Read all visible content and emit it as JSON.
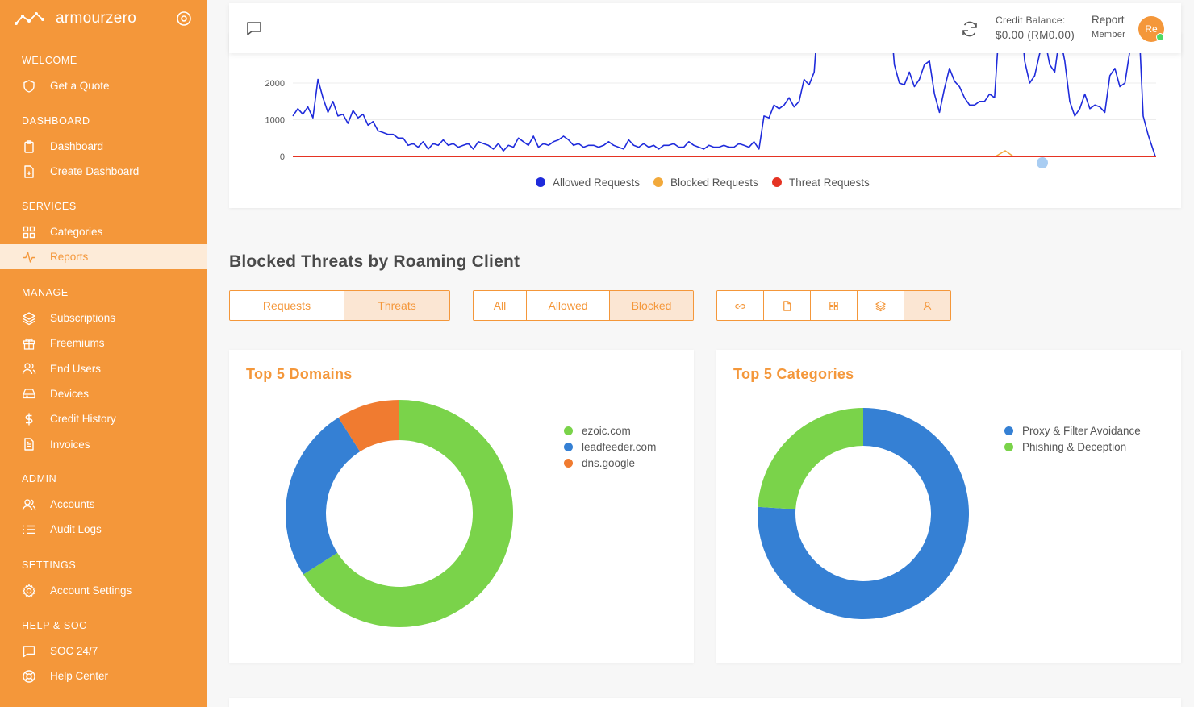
{
  "brand": {
    "name": "armourzero"
  },
  "sidebar": {
    "sections": [
      {
        "title": "WELCOME",
        "items": [
          {
            "label": "Get a Quote",
            "icon": "shield-icon"
          }
        ]
      },
      {
        "title": "DASHBOARD",
        "items": [
          {
            "label": "Dashboard",
            "icon": "clipboard-icon"
          },
          {
            "label": "Create Dashboard",
            "icon": "file-plus-icon"
          }
        ]
      },
      {
        "title": "SERVICES",
        "items": [
          {
            "label": "Categories",
            "icon": "grid-icon"
          },
          {
            "label": "Reports",
            "icon": "activity-icon"
          }
        ]
      },
      {
        "title": "MANAGE",
        "items": [
          {
            "label": "Subscriptions",
            "icon": "layers-icon"
          },
          {
            "label": "Freemiums",
            "icon": "gift-icon"
          },
          {
            "label": "End Users",
            "icon": "users-icon"
          },
          {
            "label": "Devices",
            "icon": "hard-drive-icon"
          },
          {
            "label": "Credit History",
            "icon": "dollar-icon"
          },
          {
            "label": "Invoices",
            "icon": "file-text-icon"
          }
        ]
      },
      {
        "title": "ADMIN",
        "items": [
          {
            "label": "Accounts",
            "icon": "users-icon"
          },
          {
            "label": "Audit Logs",
            "icon": "list-icon"
          }
        ]
      },
      {
        "title": "SETTINGS",
        "items": [
          {
            "label": "Account Settings",
            "icon": "settings-icon"
          }
        ]
      },
      {
        "title": "HELP & SOC",
        "items": [
          {
            "label": "SOC 24/7",
            "icon": "message-square-icon"
          },
          {
            "label": "Help Center",
            "icon": "life-buoy-icon"
          }
        ]
      }
    ],
    "active_item": "Reports"
  },
  "topbar": {
    "credit_label": "Credit Balance:",
    "credit_value": "$0.00 (RM0.00)",
    "user_name": "Report",
    "user_role": "Member",
    "avatar_initials": "Re"
  },
  "line_chart": {
    "chart_data": {
      "type": "line",
      "y_ticks": [
        0,
        1000,
        2000
      ],
      "series": [
        {
          "name": "Allowed Requests",
          "color": "#1f2bdb"
        },
        {
          "name": "Blocked Requests",
          "color": "#f2a93b"
        },
        {
          "name": "Threat Requests",
          "color": "#e53323"
        }
      ]
    }
  },
  "section_heading": "Blocked Threats by Roaming Client",
  "filters": {
    "type": [
      {
        "label": "Requests",
        "selected": false
      },
      {
        "label": "Threats",
        "selected": true
      }
    ],
    "status": [
      {
        "label": "All",
        "selected": false
      },
      {
        "label": "Allowed",
        "selected": false
      },
      {
        "label": "Blocked",
        "selected": true
      }
    ],
    "views": [
      {
        "icon": "link-icon",
        "selected": false
      },
      {
        "icon": "file-icon",
        "selected": false
      },
      {
        "icon": "grid-icon",
        "selected": false
      },
      {
        "icon": "layers-icon",
        "selected": false
      },
      {
        "icon": "user-icon",
        "selected": true
      }
    ]
  },
  "domains_card": {
    "title": "Top 5 Domains",
    "chart_data": {
      "type": "pie",
      "donut": true,
      "labels": [
        "ezoic.com",
        "leadfeeder.com",
        "dns.google"
      ],
      "values": [
        66,
        25,
        9
      ],
      "colors": [
        "#7ad34a",
        "#3580d4",
        "#f07b30"
      ]
    }
  },
  "categories_card": {
    "title": "Top 5 Categories",
    "chart_data": {
      "type": "pie",
      "donut": true,
      "labels": [
        "Proxy & Filter Avoidance",
        "Phishing & Deception"
      ],
      "values": [
        76,
        24
      ],
      "colors": [
        "#3580d4",
        "#7ad34a"
      ]
    }
  }
}
